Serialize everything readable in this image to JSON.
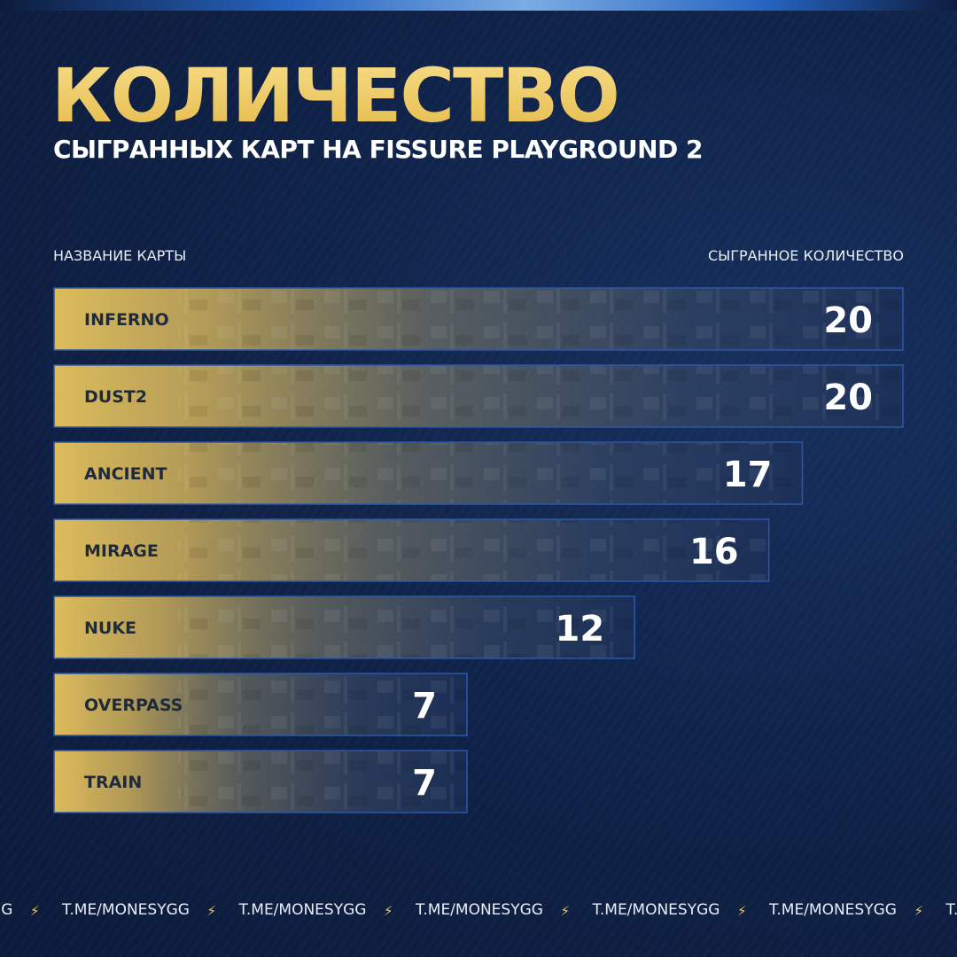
{
  "title": "КОЛИЧЕСТВО",
  "subtitle": "СЫГРАННЫХ КАРТ НА FISSURE PLAYGROUND 2",
  "header_left": "НАЗВАНИЕ КАРТЫ",
  "header_right": "СЫГРАННОЕ КОЛИЧЕСТВО",
  "footer": {
    "link_text": "T.ME/MONESYGG",
    "bolt_icon": "lightning-icon"
  },
  "colors": {
    "background": "#0f2146",
    "accent_gold": "#e8c25a",
    "bar_border": "#2c57a8"
  },
  "chart_data": {
    "type": "bar",
    "orientation": "horizontal",
    "categories": [
      "INFERNO",
      "DUST2",
      "ANCIENT",
      "MIRAGE",
      "NUKE",
      "OVERPASS",
      "TRAIN"
    ],
    "values": [
      20,
      20,
      17,
      16,
      12,
      7,
      7
    ],
    "xlim": [
      0,
      20
    ],
    "grid": false,
    "legend": "none"
  }
}
